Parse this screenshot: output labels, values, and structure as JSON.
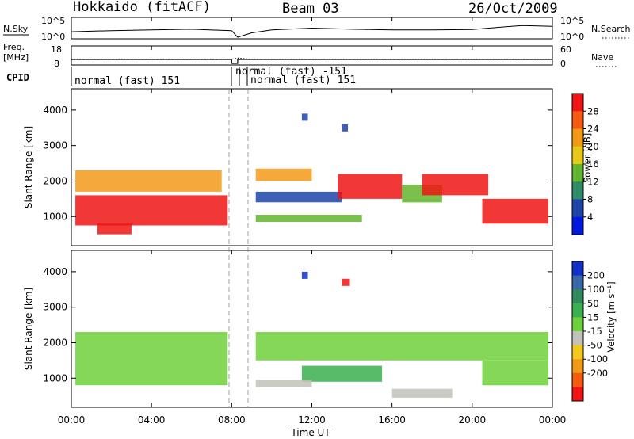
{
  "header": {
    "station": "Hokkaido (fitACF)",
    "beam": "Beam 03",
    "date": "26/Oct/2009"
  },
  "noise_panel": {
    "left_label": "N.Sky",
    "left_ticks": [
      "10^5",
      "10^0"
    ],
    "right_ticks": [
      "10^5",
      "10^0"
    ],
    "right_label": "N.Search"
  },
  "freq_panel": {
    "left_label_line1": "Freq.",
    "left_label_line2": "[MHz]",
    "left_ticks": [
      "18",
      "8"
    ],
    "right_ticks": [
      "60",
      "0"
    ],
    "right_label": "Nave"
  },
  "cpid_panel": {
    "label": "CPID",
    "segments": [
      "normal (fast) 151",
      "normal (fast) -151",
      "normal (fast) 151"
    ]
  },
  "x_axis": {
    "label": "Time UT",
    "ticks": [
      "00:00",
      "04:00",
      "08:00",
      "12:00",
      "16:00",
      "20:00",
      "00:00"
    ]
  },
  "power_panel": {
    "ylabel": "Slant Range [km]",
    "yticks": [
      "1000",
      "2000",
      "3000",
      "4000"
    ],
    "colorbar_label": "Power [dB]",
    "colorbar_ticks": [
      "4",
      "8",
      "12",
      "16",
      "20",
      "24",
      "28"
    ],
    "colors": [
      "#0018e0",
      "#1c44a8",
      "#2f8a68",
      "#62b52e",
      "#e6c81a",
      "#f29a18",
      "#f45a10",
      "#f01414"
    ]
  },
  "velocity_panel": {
    "ylabel": "Slant Range [km]",
    "yticks": [
      "1000",
      "2000",
      "3000",
      "4000"
    ],
    "colorbar_label": "Velocity [m s⁻¹]",
    "colorbar_ticks": [
      "200",
      "100",
      "50",
      "15",
      "-15",
      "-50",
      "-100",
      "-200"
    ],
    "colors": [
      "#1030c8",
      "#3866a8",
      "#2e8a5a",
      "#3ab050",
      "#6ed03a",
      "#c2c2b8",
      "#f2c820",
      "#f29a18",
      "#f45a10",
      "#f01414"
    ]
  },
  "chart_data": [
    {
      "type": "line",
      "title": "N.Sky / N.Search",
      "x_unit": "UT hours",
      "xlim": [
        0,
        24
      ],
      "scale": "log",
      "ylim_label": [
        "10^0",
        "10^5"
      ],
      "series": [
        {
          "name": "N.Sky",
          "x": [
            0,
            2,
            4,
            6,
            8,
            8.3,
            9,
            10,
            12,
            14,
            16,
            18,
            20,
            21.5,
            22.5,
            24
          ],
          "y": [
            1.5,
            1.8,
            2.0,
            2.2,
            1.8,
            0.0,
            1.2,
            2.0,
            2.5,
            2.2,
            2.0,
            2.0,
            2.1,
            2.8,
            3.2,
            3.0
          ]
        }
      ]
    },
    {
      "type": "line",
      "title": "Freq. [MHz] / Nave",
      "x_unit": "UT hours",
      "xlim": [
        0,
        24
      ],
      "ylim": [
        8,
        18
      ],
      "series": [
        {
          "name": "Freq.",
          "x": [
            0,
            8,
            8.0,
            8.3,
            8.3,
            8.7,
            8.7,
            24
          ],
          "y": [
            10.5,
            10.5,
            8,
            8,
            10.5,
            10.5,
            10.5,
            10.5
          ]
        },
        {
          "name": "Nave",
          "x": [
            0,
            8,
            8.3,
            8.7,
            9,
            24
          ],
          "y": [
            16,
            16,
            20,
            17,
            16,
            16
          ]
        }
      ]
    },
    {
      "type": "heatmap",
      "title": "Power [dB]",
      "x_unit": "UT hours",
      "xlim": [
        0,
        24
      ],
      "ylabel": "Slant Range [km]",
      "ylim": [
        180,
        4600
      ],
      "clim": [
        0,
        32
      ],
      "regions": [
        {
          "t": [
            0.2,
            7.8
          ],
          "r": [
            750,
            1600
          ],
          "value": 29
        },
        {
          "t": [
            0.2,
            7.5
          ],
          "r": [
            1700,
            2300
          ],
          "value": 20
        },
        {
          "t": [
            1.3,
            3.0
          ],
          "r": [
            500,
            800
          ],
          "value": 29
        },
        {
          "t": [
            9.2,
            13.5
          ],
          "r": [
            1400,
            1700
          ],
          "value": 4
        },
        {
          "t": [
            9.2,
            14.5
          ],
          "r": [
            850,
            1050
          ],
          "value": 13
        },
        {
          "t": [
            9.2,
            12.0
          ],
          "r": [
            2000,
            2350
          ],
          "value": 22
        },
        {
          "t": [
            13.3,
            16.5
          ],
          "r": [
            1500,
            2200
          ],
          "value": 29
        },
        {
          "t": [
            16.5,
            18.5
          ],
          "r": [
            1400,
            1900
          ],
          "value": 12
        },
        {
          "t": [
            17.5,
            20.8
          ],
          "r": [
            1600,
            2200
          ],
          "value": 29
        },
        {
          "t": [
            20.5,
            23.8
          ],
          "r": [
            800,
            1500
          ],
          "value": 29
        },
        {
          "t": [
            11.5,
            11.8
          ],
          "r": [
            3700,
            3900
          ],
          "value": 4
        },
        {
          "t": [
            13.5,
            13.8
          ],
          "r": [
            3400,
            3600
          ],
          "value": 4
        }
      ]
    },
    {
      "type": "heatmap",
      "title": "Velocity [m s⁻¹]",
      "x_unit": "UT hours",
      "xlim": [
        0,
        24
      ],
      "ylabel": "Slant Range [km]",
      "ylim": [
        180,
        4600
      ],
      "clim": [
        -200,
        200
      ],
      "regions": [
        {
          "t": [
            0.2,
            7.8
          ],
          "r": [
            800,
            2300
          ],
          "value": 0
        },
        {
          "t": [
            9.2,
            23.8
          ],
          "r": [
            1500,
            2300
          ],
          "value": 0
        },
        {
          "t": [
            11.5,
            15.5
          ],
          "r": [
            900,
            1350
          ],
          "value": 40
        },
        {
          "t": [
            9.2,
            12.0
          ],
          "r": [
            750,
            950
          ],
          "value": -40
        },
        {
          "t": [
            16.0,
            19.0
          ],
          "r": [
            450,
            700
          ],
          "value": -40
        },
        {
          "t": [
            20.5,
            23.8
          ],
          "r": [
            800,
            1500
          ],
          "value": 0
        },
        {
          "t": [
            11.5,
            11.8
          ],
          "r": [
            3800,
            4000
          ],
          "value": 200
        },
        {
          "t": [
            13.5,
            13.9
          ],
          "r": [
            3600,
            3800
          ],
          "value": -200
        }
      ]
    }
  ]
}
